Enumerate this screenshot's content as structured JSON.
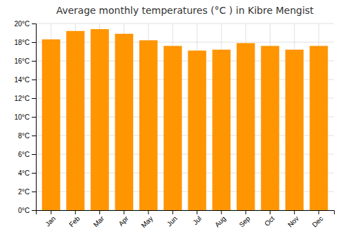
{
  "chart_data": {
    "type": "bar",
    "title": "Average monthly temperatures (°C ) in Kibre Mengist",
    "categories": [
      "Jan",
      "Feb",
      "Mar",
      "Apr",
      "May",
      "Jun",
      "Jul",
      "Aug",
      "Sep",
      "Oct",
      "Nov",
      "Dec"
    ],
    "values": [
      18.3,
      19.2,
      19.4,
      18.9,
      18.2,
      17.6,
      17.1,
      17.2,
      17.9,
      17.6,
      17.2,
      17.6
    ],
    "color": "#FF9500",
    "ylim": [
      0,
      20
    ],
    "yticks": [
      {
        "value": 0,
        "label": "0°C"
      },
      {
        "value": 2,
        "label": "2°C"
      },
      {
        "value": 4,
        "label": "4°C"
      },
      {
        "value": 6,
        "label": "6°C"
      },
      {
        "value": 8,
        "label": "8°C"
      },
      {
        "value": 10,
        "label": "10°C"
      },
      {
        "value": 12,
        "label": "12°C"
      },
      {
        "value": 14,
        "label": "14°C"
      },
      {
        "value": 16,
        "label": "16°C"
      },
      {
        "value": 18,
        "label": "18°C"
      },
      {
        "value": 20,
        "label": "20°C"
      }
    ],
    "grid": true
  }
}
